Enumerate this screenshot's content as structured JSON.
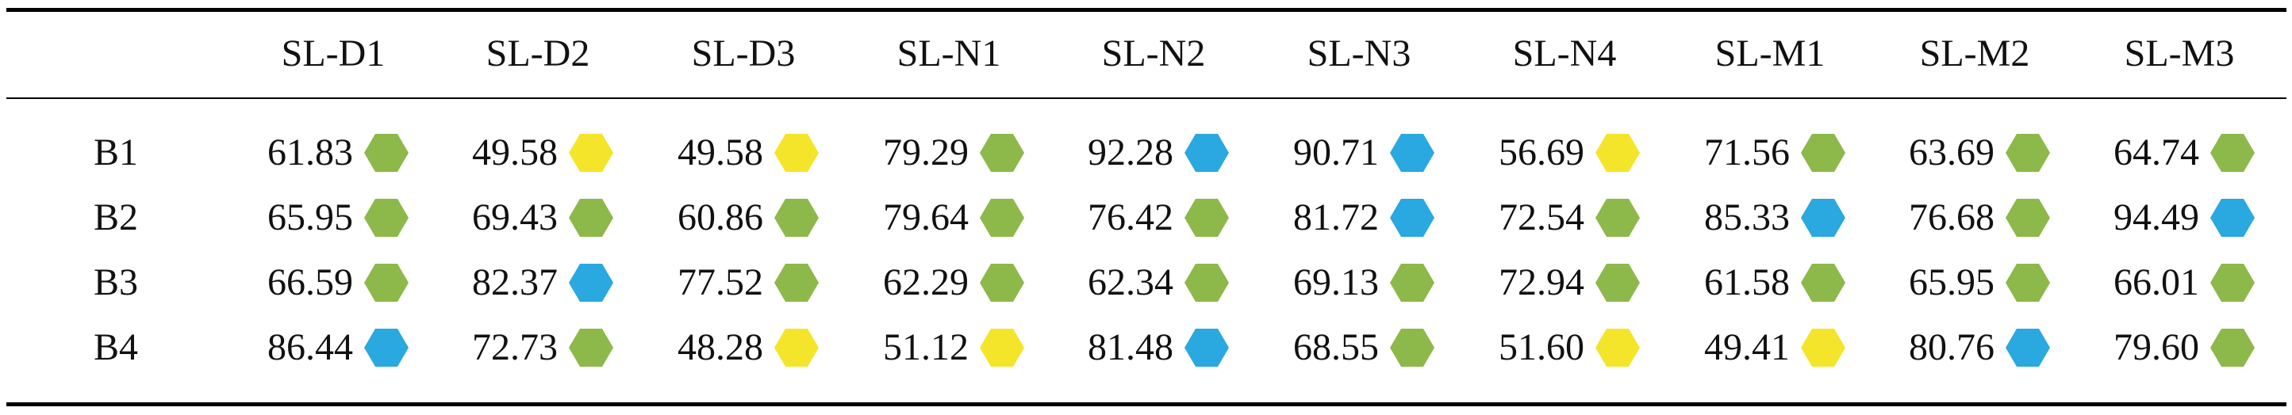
{
  "columns": [
    "SL-D1",
    "SL-D2",
    "SL-D3",
    "SL-N1",
    "SL-N2",
    "SL-N3",
    "SL-N4",
    "SL-M1",
    "SL-M2",
    "SL-M3"
  ],
  "colors": {
    "green": "#8db84a",
    "yellow": "#f5e52a",
    "blue": "#2aa8e0"
  },
  "rows": [
    {
      "label": "B1",
      "cells": [
        {
          "value": "61.83",
          "marker": "green"
        },
        {
          "value": "49.58",
          "marker": "yellow"
        },
        {
          "value": "49.58",
          "marker": "yellow"
        },
        {
          "value": "79.29",
          "marker": "green"
        },
        {
          "value": "92.28",
          "marker": "blue"
        },
        {
          "value": "90.71",
          "marker": "blue"
        },
        {
          "value": "56.69",
          "marker": "yellow"
        },
        {
          "value": "71.56",
          "marker": "green"
        },
        {
          "value": "63.69",
          "marker": "green"
        },
        {
          "value": "64.74",
          "marker": "green"
        }
      ]
    },
    {
      "label": "B2",
      "cells": [
        {
          "value": "65.95",
          "marker": "green"
        },
        {
          "value": "69.43",
          "marker": "green"
        },
        {
          "value": "60.86",
          "marker": "green"
        },
        {
          "value": "79.64",
          "marker": "green"
        },
        {
          "value": "76.42",
          "marker": "green"
        },
        {
          "value": "81.72",
          "marker": "blue"
        },
        {
          "value": "72.54",
          "marker": "green"
        },
        {
          "value": "85.33",
          "marker": "blue"
        },
        {
          "value": "76.68",
          "marker": "green"
        },
        {
          "value": "94.49",
          "marker": "blue"
        }
      ]
    },
    {
      "label": "B3",
      "cells": [
        {
          "value": "66.59",
          "marker": "green"
        },
        {
          "value": "82.37",
          "marker": "blue"
        },
        {
          "value": "77.52",
          "marker": "green"
        },
        {
          "value": "62.29",
          "marker": "green"
        },
        {
          "value": "62.34",
          "marker": "green"
        },
        {
          "value": "69.13",
          "marker": "green"
        },
        {
          "value": "72.94",
          "marker": "green"
        },
        {
          "value": "61.58",
          "marker": "green"
        },
        {
          "value": "65.95",
          "marker": "green"
        },
        {
          "value": "66.01",
          "marker": "green"
        }
      ]
    },
    {
      "label": "B4",
      "cells": [
        {
          "value": "86.44",
          "marker": "blue"
        },
        {
          "value": "72.73",
          "marker": "green"
        },
        {
          "value": "48.28",
          "marker": "yellow"
        },
        {
          "value": "51.12",
          "marker": "yellow"
        },
        {
          "value": "81.48",
          "marker": "blue"
        },
        {
          "value": "68.55",
          "marker": "green"
        },
        {
          "value": "51.60",
          "marker": "yellow"
        },
        {
          "value": "49.41",
          "marker": "yellow"
        },
        {
          "value": "80.76",
          "marker": "blue"
        },
        {
          "value": "79.60",
          "marker": "green"
        }
      ]
    }
  ]
}
